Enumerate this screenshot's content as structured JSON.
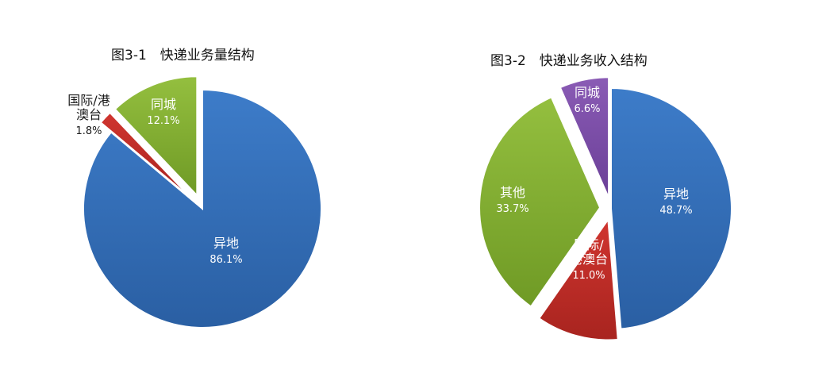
{
  "colors": {
    "blue": "#3d7cc9",
    "blue_dark": "#2a5fa3",
    "red": "#d0352f",
    "red_dark": "#a8241f",
    "green": "#94bf3f",
    "green_dark": "#6f9a25",
    "purple": "#8a5bb5",
    "purple_dark": "#6a3f97"
  },
  "chart_data": [
    {
      "type": "pie",
      "title": "图3-1　快递业务量结构",
      "start_angle_deg": 0,
      "slices": [
        {
          "label": "异地",
          "value": 86.1,
          "text": "86.1%",
          "color": "blue",
          "explode": false
        },
        {
          "label": "国际/港澳台",
          "label_lines": [
            "国际/港",
            "澳台"
          ],
          "value": 1.8,
          "text": "1.8%",
          "color": "red",
          "explode": true
        },
        {
          "label": "同城",
          "value": 12.1,
          "text": "12.1%",
          "color": "green",
          "explode": true
        }
      ]
    },
    {
      "type": "pie",
      "title": "图3-2　快递业务收入结构",
      "start_angle_deg": 0,
      "slices": [
        {
          "label": "异地",
          "value": 48.7,
          "text": "48.7%",
          "color": "blue",
          "explode": false
        },
        {
          "label": "国际/港澳台",
          "label_lines": [
            "国际/",
            "港澳台"
          ],
          "value": 11.0,
          "text": "11.0%",
          "color": "red",
          "explode": true
        },
        {
          "label": "其他",
          "value": 33.7,
          "text": "33.7%",
          "color": "green",
          "explode": true
        },
        {
          "label": "同城",
          "value": 6.6,
          "text": "6.6%",
          "color": "purple",
          "explode": true
        }
      ]
    }
  ]
}
